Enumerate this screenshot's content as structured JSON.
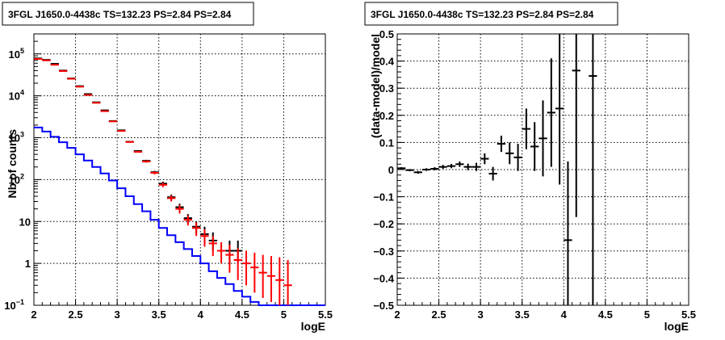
{
  "chart_data": [
    {
      "type": "line",
      "title": "3FGL J1650.0-4438c TS=132.23 PS=2.84 PS=2.84",
      "xlabel": "logE",
      "ylabel": "Nb of counts",
      "xlim": [
        2,
        5.5
      ],
      "ylim": [
        0.1,
        300000
      ],
      "yscale": "log",
      "grid": true,
      "x_ticks": [
        "2",
        "2.5",
        "3",
        "3.5",
        "4",
        "4.5",
        "5",
        "5.5"
      ],
      "y_ticks": [
        {
          "v": 0.1,
          "base": "10",
          "exp": "−1"
        },
        {
          "v": 1,
          "base": "1",
          "exp": ""
        },
        {
          "v": 10,
          "base": "10",
          "exp": ""
        },
        {
          "v": 100,
          "base": "10",
          "exp": "2"
        },
        {
          "v": 1000,
          "base": "10",
          "exp": "3"
        },
        {
          "v": 10000,
          "base": "10",
          "exp": "4"
        },
        {
          "v": 100000,
          "base": "10",
          "exp": "5"
        }
      ],
      "bin_edges": [
        2.0,
        2.1,
        2.2,
        2.3,
        2.4,
        2.5,
        2.6,
        2.7,
        2.8,
        2.9,
        3.0,
        3.1,
        3.2,
        3.3,
        3.4,
        3.5,
        3.6,
        3.7,
        3.8,
        3.9,
        4.0,
        4.1,
        4.2,
        4.3,
        4.4,
        4.5,
        4.6,
        4.7,
        4.8,
        4.9,
        5.0,
        5.1,
        5.2,
        5.3,
        5.4,
        5.5
      ],
      "series": [
        {
          "color": "#0000ff",
          "style": "step",
          "values": [
            1750,
            1400,
            1050,
            780,
            570,
            400,
            285,
            200,
            140,
            95,
            62,
            40,
            26,
            17.5,
            11,
            7,
            4.7,
            3.2,
            2.2,
            1.5,
            1.0,
            0.65,
            0.45,
            0.32,
            0.22,
            0.16,
            0.12,
            0.1,
            0.1,
            0.1,
            0.1,
            0.1,
            0.1,
            0.1,
            0.1
          ]
        },
        {
          "color": "#000000",
          "style": "points",
          "x": [
            2.05,
            2.15,
            2.25,
            2.35,
            2.45,
            2.55,
            2.65,
            2.75,
            2.85,
            2.95,
            3.05,
            3.15,
            3.25,
            3.35,
            3.45,
            3.55,
            3.65,
            3.75,
            3.85,
            3.95,
            4.05,
            4.15,
            4.35,
            4.45
          ],
          "y": [
            78000,
            72000,
            58000,
            40000,
            26000,
            17000,
            11000,
            7000,
            4500,
            2500,
            1500,
            800,
            480,
            280,
            150,
            80,
            38,
            22,
            12,
            7.5,
            5,
            3.5,
            2,
            2
          ],
          "err": [
            [
              77700,
              78300
            ],
            [
              71700,
              72300
            ],
            [
              57760,
              58240
            ],
            [
              39800,
              40200
            ],
            [
              25840,
              26160
            ],
            [
              16870,
              17130
            ],
            [
              10900,
              11100
            ],
            [
              6920,
              7080
            ],
            [
              4430,
              4570
            ],
            [
              2450,
              2550
            ],
            [
              1460,
              1540
            ],
            [
              770,
              830
            ],
            [
              460,
              500
            ],
            [
              263,
              297
            ],
            [
              138,
              162
            ],
            [
              71,
              89
            ],
            [
              32,
              44
            ],
            [
              17.5,
              26.5
            ],
            [
              9,
              15
            ],
            [
              5,
              10
            ],
            [
              3,
              7.5
            ],
            [
              2,
              5.5
            ],
            [
              1,
              3.5
            ],
            [
              1,
              3.5
            ]
          ]
        },
        {
          "color": "#ff0000",
          "style": "points",
          "x": [
            2.05,
            2.15,
            2.25,
            2.35,
            2.45,
            2.55,
            2.65,
            2.75,
            2.85,
            2.95,
            3.05,
            3.15,
            3.25,
            3.35,
            3.45,
            3.55,
            3.65,
            3.75,
            3.85,
            3.95,
            4.05,
            4.15,
            4.25,
            4.35,
            4.45,
            4.55,
            4.65,
            4.75,
            4.85,
            4.95,
            5.05
          ],
          "y": [
            76000,
            70000,
            55000,
            39000,
            25500,
            16500,
            10500,
            6800,
            4300,
            2450,
            1450,
            790,
            460,
            270,
            145,
            75,
            36,
            20,
            11,
            7,
            4.5,
            3,
            2,
            1.6,
            1.2,
            1.0,
            0.8,
            0.6,
            0.5,
            0.4,
            0.3
          ],
          "err": [
            [
              75700,
              76300
            ],
            [
              69700,
              70300
            ],
            [
              54770,
              55230
            ],
            [
              38800,
              39200
            ],
            [
              25340,
              25660
            ],
            [
              16370,
              16630
            ],
            [
              10400,
              10600
            ],
            [
              6720,
              6880
            ],
            [
              4230,
              4370
            ],
            [
              2400,
              2500
            ],
            [
              1410,
              1490
            ],
            [
              760,
              820
            ],
            [
              440,
              480
            ],
            [
              253,
              287
            ],
            [
              133,
              157
            ],
            [
              66,
              84
            ],
            [
              30,
              42
            ],
            [
              15.5,
              24.5
            ],
            [
              8,
              14
            ],
            [
              4.5,
              9.5
            ],
            [
              2.5,
              6.5
            ],
            [
              1.5,
              4.5
            ],
            [
              1,
              3.2
            ],
            [
              0.6,
              2.8
            ],
            [
              0.4,
              2.3
            ],
            [
              0.3,
              2.0
            ],
            [
              0.2,
              1.8
            ],
            [
              0.15,
              1.6
            ],
            [
              0.12,
              1.5
            ],
            [
              0.1,
              1.4
            ],
            [
              0.1,
              1.2
            ]
          ]
        }
      ]
    },
    {
      "type": "scatter",
      "title": "3FGL J1650.0-4438c TS=132.23 PS=2.84 PS=2.84",
      "xlabel": "logE",
      "ylabel": "(data-model)/model",
      "xlim": [
        2,
        5.5
      ],
      "ylim": [
        -0.5,
        0.5
      ],
      "grid": true,
      "x_ticks": [
        "2",
        "2.5",
        "3",
        "3.5",
        "4",
        "4.5",
        "5",
        "5.5"
      ],
      "y_ticks": [
        "−0.5",
        "−0.4",
        "−0.3",
        "−0.2",
        "−0.1",
        "0",
        "0.1",
        "0.2",
        "0.3",
        "0.4",
        "0.5"
      ],
      "series": [
        {
          "color": "#000000",
          "x": [
            2.05,
            2.15,
            2.25,
            2.35,
            2.45,
            2.55,
            2.65,
            2.75,
            2.85,
            2.95,
            3.05,
            3.15,
            3.25,
            3.35,
            3.45,
            3.55,
            3.65,
            3.75,
            3.85,
            3.95,
            4.05,
            4.15,
            4.35
          ],
          "y": [
            0.005,
            -0.002,
            -0.01,
            0.0,
            0.003,
            0.01,
            0.013,
            0.02,
            0.01,
            0.01,
            0.04,
            -0.015,
            0.095,
            0.06,
            0.045,
            0.15,
            0.085,
            0.115,
            0.21,
            0.225,
            -0.26,
            0.365,
            0.345
          ],
          "err": [
            0.004,
            0.004,
            0.005,
            0.005,
            0.006,
            0.007,
            0.008,
            0.01,
            0.012,
            0.015,
            0.02,
            0.025,
            0.03,
            0.04,
            0.05,
            0.075,
            0.09,
            0.14,
            0.2,
            0.28,
            0.29,
            0.54,
            0.9
          ]
        }
      ]
    }
  ]
}
